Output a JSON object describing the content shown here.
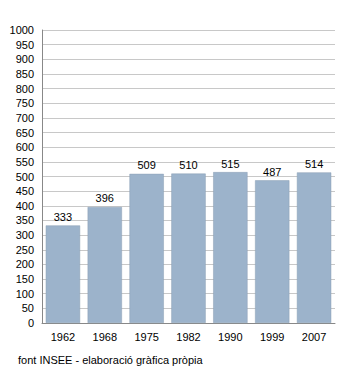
{
  "chart_data": {
    "type": "bar",
    "categories": [
      "1962",
      "1968",
      "1975",
      "1982",
      "1990",
      "1999",
      "2007"
    ],
    "values": [
      333,
      396,
      509,
      510,
      515,
      487,
      514
    ],
    "color": "#9cb3cb",
    "ylim": [
      0,
      1000
    ],
    "yticks": [
      0,
      50,
      100,
      150,
      200,
      250,
      300,
      350,
      400,
      450,
      500,
      550,
      600,
      650,
      700,
      750,
      800,
      850,
      900,
      950,
      1000
    ],
    "grid": true,
    "data_labels": true,
    "annotation": "font INSEE - elaboració gràfica pròpia"
  }
}
